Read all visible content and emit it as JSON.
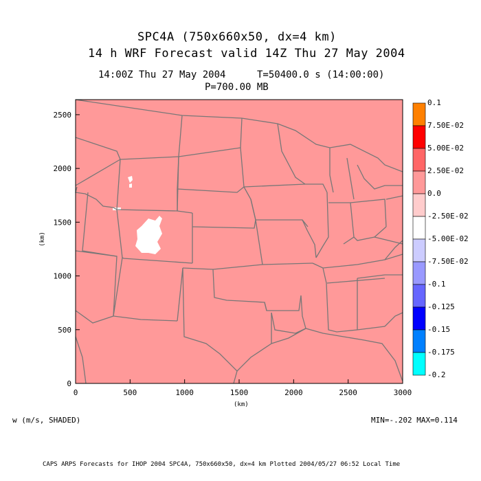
{
  "header": {
    "title_line1": "SPC4A (750x660x50, dx=4 km)",
    "title_line2": "14 h WRF Forecast valid 14Z Thu 27 May 2004",
    "time_line": "14:00Z Thu 27 May 2004",
    "model_time": "T=50400.0 s (14:00:00)",
    "level": "P=700.00 MB"
  },
  "axes": {
    "x_label": "(km)",
    "y_label": "(km)",
    "x_ticks": [
      0,
      500,
      1000,
      1500,
      2000,
      2500,
      3000
    ],
    "y_ticks": [
      0,
      500,
      1000,
      1500,
      2000,
      2500
    ],
    "x_range": [
      0,
      3000
    ],
    "y_range": [
      0,
      2640
    ]
  },
  "field": {
    "label": "w (m/s, SHADED)",
    "minmax": "MIN=-.202 MAX=0.114",
    "fill_color": "#ff9999"
  },
  "colorbar": {
    "labels": [
      "0.1",
      "7.50E-02",
      "5.00E-02",
      "2.50E-02",
      "0.0",
      "-2.50E-02",
      "-5.00E-02",
      "-7.50E-02",
      "-0.1",
      "-0.125",
      "-0.15",
      "-0.175",
      "-0.2"
    ],
    "colors": [
      "#ff8000",
      "#ff0000",
      "#ff6666",
      "#ff9999",
      "#ffcccc",
      "#ffffff",
      "#ccccff",
      "#9999ff",
      "#6666ff",
      "#0000ff",
      "#0080ff",
      "#00ffff"
    ]
  },
  "footer": "CAPS ARPS Forecasts for IHOP 2004  SPC4A, 750x660x50, dx=4 km  Plotted 2004/05/27 06:52 Local Time"
}
